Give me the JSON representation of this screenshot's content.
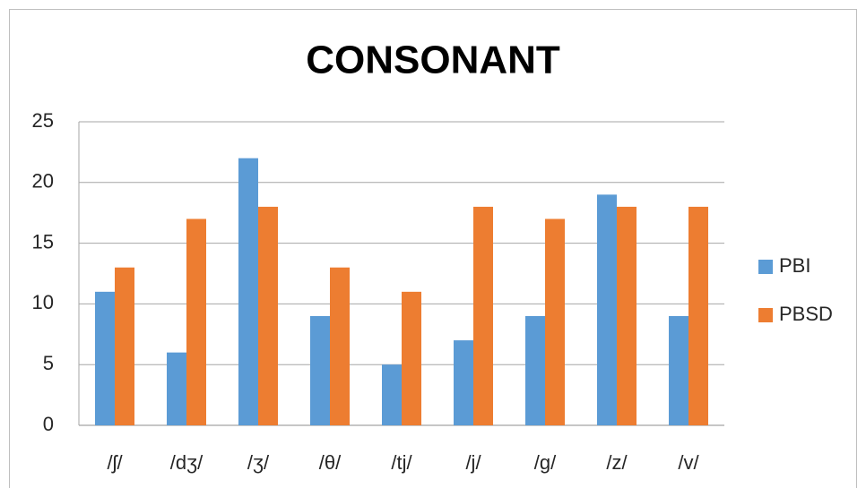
{
  "chart_data": {
    "type": "bar",
    "title": "CONSONANT",
    "categories": [
      "/ʃ/",
      "/dʒ/",
      "/ʒ/",
      "/θ/",
      "/tj/",
      "/j/",
      "/g/",
      "/z/",
      "/v/"
    ],
    "series": [
      {
        "name": "PBI",
        "color": "#5b9bd5",
        "values": [
          11,
          6,
          22,
          9,
          5,
          7,
          9,
          19,
          9
        ]
      },
      {
        "name": "PBSD",
        "color": "#ed7d31",
        "values": [
          13,
          17,
          18,
          13,
          11,
          18,
          17,
          18,
          18
        ]
      }
    ],
    "ylim": [
      0,
      25
    ],
    "yticks": [
      0,
      5,
      10,
      15,
      20,
      25
    ],
    "grid": true,
    "legend": "right"
  }
}
